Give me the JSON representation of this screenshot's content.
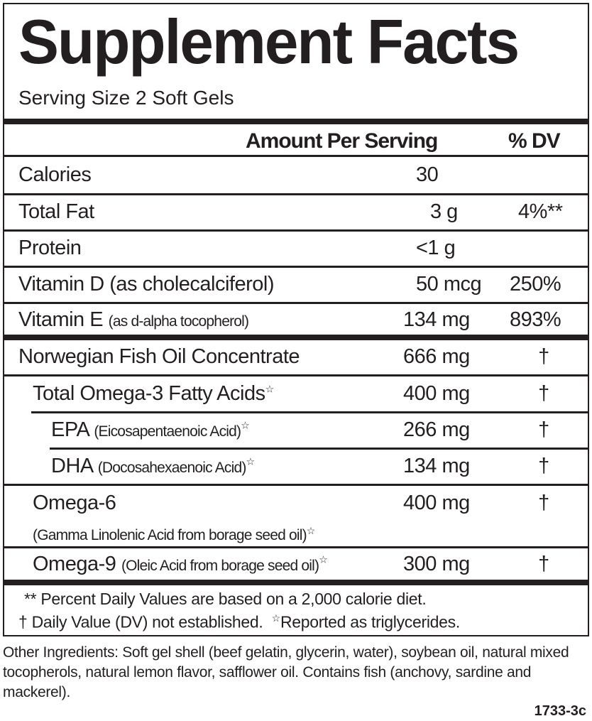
{
  "title": "Supplement Facts",
  "serving_size": "Serving Size 2 Soft Gels",
  "header": {
    "amount": "Amount Per Serving",
    "dv": "% DV"
  },
  "rows": [
    {
      "name": "Calories",
      "sub": "",
      "amount": "30",
      "dv": ""
    },
    {
      "name": "Total Fat",
      "sub": "",
      "amount": "3 g",
      "dv": "4%**"
    },
    {
      "name": "Protein",
      "sub": "",
      "amount": "<1 g",
      "dv": ""
    },
    {
      "name": "Vitamin D (as cholecalciferol)",
      "sub": "",
      "amount": "50 mcg",
      "dv": "250%"
    },
    {
      "name": "Vitamin E",
      "sub": "(as d-alpha tocopherol)",
      "amount": "134 mg",
      "dv": "893%"
    },
    {
      "name": "Norwegian Fish Oil Concentrate",
      "sub": "",
      "amount": "666 mg",
      "dv": "†"
    },
    {
      "name": "Total Omega-3 Fatty Acids",
      "sub": "",
      "amount": "400 mg",
      "dv": "†"
    },
    {
      "name": "EPA",
      "sub": "(Eicosapentaenoic Acid)",
      "amount": "266 mg",
      "dv": "†"
    },
    {
      "name": "DHA",
      "sub": "(Docosahexaenoic Acid)",
      "amount": "134 mg",
      "dv": "†"
    },
    {
      "name": "Omega-6",
      "sub": "(Gamma Linolenic Acid from borage seed oil)",
      "amount": "400 mg",
      "dv": "†"
    },
    {
      "name": "Omega-9",
      "sub": "(Oleic Acid from borage seed oil)",
      "amount": "300 mg",
      "dv": "†"
    }
  ],
  "star": "☆",
  "footnotes": {
    "line1": "** Percent Daily Values are based on a 2,000 calorie diet.",
    "line2a": "† Daily Value (DV) not established.",
    "line2b": "Reported as triglycerides."
  },
  "other_ingredients": "Other Ingredients: Soft gel shell (beef gelatin, glycerin, water), soybean oil, natural mixed tocopherols, natural lemon flavor, safflower oil. Contains fish (anchovy, sardine and mackerel).",
  "code": "1733-3c"
}
